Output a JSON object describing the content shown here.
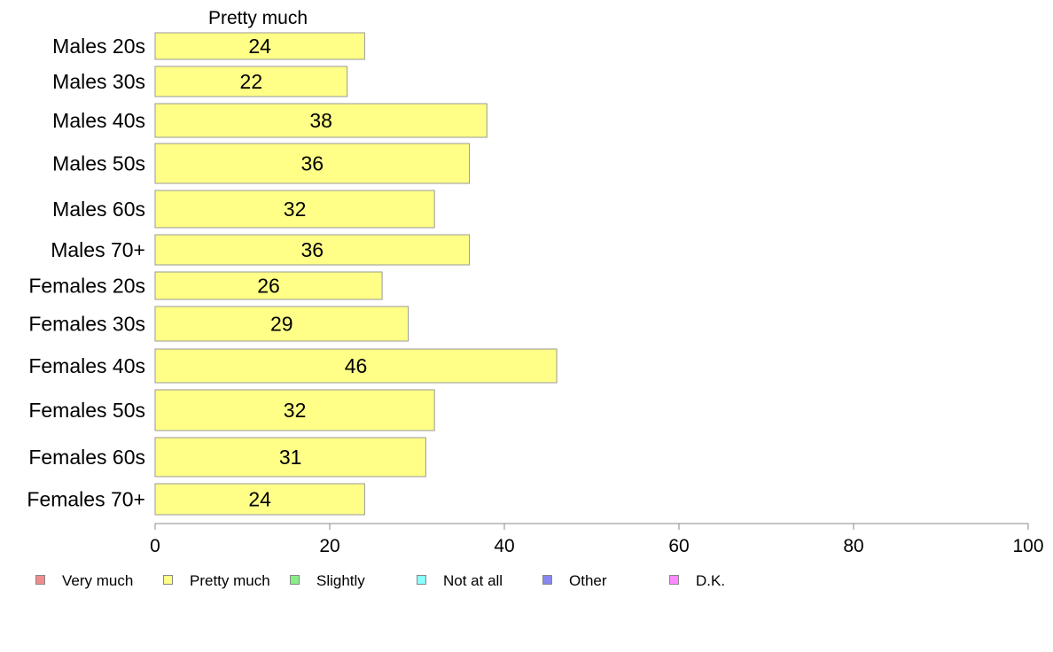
{
  "chart_data": {
    "type": "bar",
    "orientation": "horizontal",
    "title": "Pretty much",
    "categories": [
      "Males 20s",
      "Males 30s",
      "Males 40s",
      "Males 50s",
      "Males 60s",
      "Males 70+",
      "Females 20s",
      "Females 30s",
      "Females 40s",
      "Females 50s",
      "Females 60s",
      "Females 70+"
    ],
    "series": [
      {
        "name": "Pretty much",
        "color": "#ffff88",
        "values": [
          24,
          22,
          38,
          36,
          32,
          36,
          26,
          29,
          46,
          32,
          31,
          24
        ]
      }
    ],
    "xlim": [
      0,
      100
    ],
    "xticks": [
      0,
      20,
      40,
      60,
      80,
      100
    ],
    "grid": false,
    "legend_position": "bottom",
    "legend": [
      {
        "label": "Very much",
        "color": "#f28b8b",
        "icon": "square-swatch"
      },
      {
        "label": "Pretty much",
        "color": "#ffff88",
        "icon": "square-swatch"
      },
      {
        "label": "Slightly",
        "color": "#88ee88",
        "icon": "square-swatch"
      },
      {
        "label": "Not at all",
        "color": "#88ffff",
        "icon": "square-swatch"
      },
      {
        "label": "Other",
        "color": "#8888ee",
        "icon": "square-swatch"
      },
      {
        "label": "D.K.",
        "color": "#ff88ff",
        "icon": "square-swatch"
      }
    ]
  }
}
